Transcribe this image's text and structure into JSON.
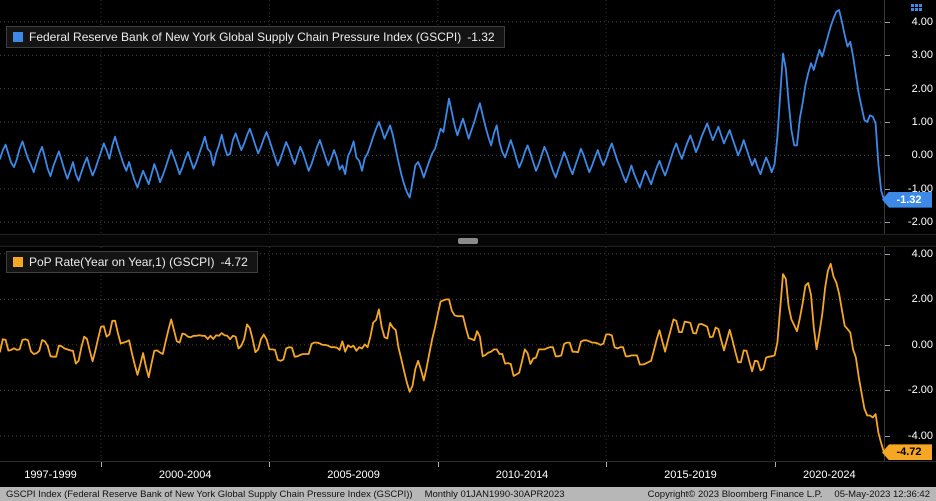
{
  "colors": {
    "background": "#000000",
    "grid": "#474747",
    "axis_text": "#ffffff",
    "gscpi_blue": "#3c89e8",
    "pop_orange": "#f5a623",
    "statusbar_bg": "#b7b7b7",
    "statusbar_text": "#111111"
  },
  "x_axis": {
    "domain_start": 1997.0,
    "domain_end": 2023.25,
    "boundaries": [
      2000,
      2005,
      2010,
      2015,
      2020
    ],
    "groups": [
      {
        "label": "1997-1999",
        "start": 1997,
        "end": 2000
      },
      {
        "label": "2000-2004",
        "start": 2000,
        "end": 2005
      },
      {
        "label": "2005-2009",
        "start": 2005,
        "end": 2010
      },
      {
        "label": "2010-2014",
        "start": 2010,
        "end": 2015
      },
      {
        "label": "2015-2019",
        "start": 2015,
        "end": 2020
      },
      {
        "label": "2020-2024",
        "start": 2020,
        "end": 2024
      }
    ]
  },
  "chart_data": [
    {
      "type": "line",
      "title": "Federal Reserve Bank of New York Global Supply Chain Pressure Index (GSCPI)",
      "legend_position": "top-left",
      "frequency": "Monthly",
      "x_start_year": 1997.0,
      "x_end_year": 2023.25,
      "last_value": -1.32,
      "last_value_label": "-1.32",
      "color": "#3c89e8",
      "badge_text_color": "#ffffff",
      "grid": true,
      "ylim": [
        -2.35,
        4.65
      ],
      "yticks": [
        4.0,
        3.0,
        2.0,
        1.0,
        0.0,
        -1.0,
        -2.0
      ],
      "values": [
        -0.1,
        0.15,
        0.32,
        0.05,
        -0.22,
        -0.35,
        -0.12,
        0.2,
        0.42,
        0.15,
        -0.1,
        -0.28,
        -0.5,
        -0.22,
        0.06,
        0.26,
        -0.06,
        -0.4,
        -0.62,
        -0.32,
        -0.1,
        0.12,
        -0.16,
        -0.44,
        -0.7,
        -0.46,
        -0.2,
        -0.56,
        -0.76,
        -0.5,
        -0.26,
        -0.06,
        -0.36,
        -0.6,
        -0.4,
        -0.14,
        0.1,
        0.36,
        0.16,
        -0.1,
        0.3,
        0.56,
        0.26,
        0.0,
        -0.26,
        -0.46,
        -0.2,
        -0.5,
        -0.76,
        -0.96,
        -0.7,
        -0.46,
        -0.66,
        -0.86,
        -0.56,
        -0.26,
        -0.5,
        -0.8,
        -0.6,
        -0.36,
        -0.1,
        0.16,
        -0.06,
        -0.3,
        -0.56,
        -0.36,
        -0.1,
        0.1,
        -0.16,
        -0.4,
        -0.2,
        0.06,
        0.3,
        0.56,
        0.2,
        0.1,
        -0.3,
        0.06,
        0.3,
        0.62,
        0.26,
        0.0,
        0.05,
        0.46,
        0.66,
        0.4,
        0.16,
        0.36,
        0.6,
        0.8,
        0.56,
        0.3,
        0.06,
        0.26,
        0.5,
        0.7,
        0.46,
        0.2,
        -0.06,
        -0.3,
        -0.1,
        0.16,
        0.4,
        0.2,
        -0.06,
        -0.26,
        0.0,
        0.26,
        0.06,
        -0.2,
        -0.46,
        -0.26,
        0.0,
        0.26,
        0.46,
        0.2,
        -0.06,
        -0.3,
        -0.1,
        0.16,
        -0.06,
        -0.42,
        -0.3,
        -0.56,
        -0.02,
        0.16,
        0.42,
        -0.06,
        -0.16,
        -0.46,
        -0.08,
        0.06,
        0.3,
        0.56,
        0.8,
        1.0,
        0.76,
        0.5,
        0.7,
        0.9,
        0.6,
        0.2,
        -0.2,
        -0.56,
        -0.86,
        -1.1,
        -1.26,
        -0.8,
        -0.3,
        -0.2,
        -0.4,
        -0.66,
        -0.4,
        -0.16,
        0.06,
        0.2,
        0.5,
        0.8,
        0.7,
        1.2,
        1.7,
        1.3,
        0.9,
        0.6,
        0.86,
        1.1,
        0.8,
        0.5,
        0.76,
        1.0,
        1.3,
        1.56,
        1.2,
        0.86,
        0.56,
        0.3,
        0.66,
        0.9,
        0.4,
        0.1,
        -0.06,
        0.2,
        0.46,
        0.2,
        -0.1,
        -0.36,
        -0.16,
        0.1,
        0.3,
        0.06,
        -0.2,
        -0.46,
        -0.26,
        0.0,
        0.26,
        0.06,
        -0.2,
        -0.46,
        -0.66,
        -0.4,
        -0.16,
        0.1,
        -0.1,
        -0.36,
        -0.56,
        -0.3,
        -0.06,
        0.2,
        0.0,
        -0.26,
        -0.5,
        -0.3,
        -0.06,
        0.16,
        -0.1,
        -0.3,
        -0.1,
        0.16,
        0.36,
        0.1,
        -0.16,
        -0.36,
        -0.6,
        -0.8,
        -0.56,
        -0.3,
        -0.56,
        -0.76,
        -0.96,
        -0.7,
        -0.46,
        -0.66,
        -0.86,
        -0.6,
        -0.36,
        -0.16,
        -0.4,
        -0.6,
        -0.36,
        -0.1,
        0.16,
        0.36,
        0.1,
        -0.1,
        0.16,
        0.4,
        0.6,
        0.36,
        0.1,
        0.3,
        0.56,
        0.76,
        0.96,
        0.7,
        0.46,
        0.66,
        0.86,
        0.6,
        0.36,
        0.56,
        0.76,
        0.5,
        0.26,
        0.0,
        0.2,
        0.46,
        0.2,
        -0.06,
        -0.3,
        -0.1,
        -0.36,
        -0.56,
        -0.3,
        -0.06,
        -0.26,
        -0.5,
        -0.26,
        0.56,
        1.8,
        3.05,
        2.6,
        1.6,
        0.76,
        0.3,
        0.3,
        1.1,
        1.56,
        2.1,
        2.46,
        2.76,
        2.56,
        2.86,
        3.16,
        2.96,
        3.26,
        3.56,
        3.86,
        4.1,
        4.3,
        4.35,
        4.0,
        3.6,
        3.26,
        3.4,
        2.96,
        2.4,
        1.86,
        1.46,
        1.06,
        1.0,
        1.2,
        1.16,
        0.96,
        -0.26,
        -1.06,
        -1.32
      ]
    },
    {
      "type": "line",
      "title": "PoP Rate(Year on Year,1) (GSCPI)",
      "legend_position": "top-left",
      "frequency": "Monthly",
      "x_start_year": 1997.0,
      "x_end_year": 2023.25,
      "last_value": -4.72,
      "last_value_label": "-4.72",
      "color": "#f5a623",
      "badge_text_color": "#000000",
      "grid": true,
      "ylim": [
        -5.1,
        4.3
      ],
      "yticks": [
        4.0,
        2.0,
        0.0,
        -2.0,
        -4.0
      ],
      "values": [
        -0.3,
        0.25,
        0.22,
        -0.25,
        -0.22,
        -0.15,
        -0.22,
        -0.2,
        0.22,
        0.25,
        0.2,
        -0.28,
        -0.4,
        -0.37,
        -0.26,
        0.21,
        0.16,
        -0.05,
        -0.5,
        -0.52,
        -0.52,
        -0.03,
        -0.06,
        -0.16,
        -0.2,
        -0.24,
        -0.26,
        -0.82,
        -0.7,
        -0.1,
        0.36,
        0.26,
        -0.26,
        -0.72,
        -0.24,
        0.3,
        0.8,
        0.82,
        0.36,
        0.46,
        1.06,
        1.06,
        0.52,
        0.06,
        0.1,
        0.14,
        0.2,
        -0.36,
        -0.86,
        -1.32,
        -0.86,
        -0.36,
        -0.96,
        -1.42,
        -0.82,
        -0.26,
        -0.24,
        -0.34,
        -0.4,
        0.14,
        0.66,
        1.12,
        0.64,
        0.16,
        0.1,
        0.5,
        0.46,
        0.36,
        0.34,
        0.4,
        0.4,
        0.42,
        0.4,
        0.4,
        0.26,
        0.4,
        0.26,
        0.42,
        0.4,
        0.52,
        0.42,
        0.4,
        0.25,
        0.4,
        0.36,
        -0.16,
        -0.04,
        0.26,
        0.9,
        0.74,
        0.26,
        -0.32,
        -0.2,
        0.26,
        0.45,
        0.24,
        -0.2,
        -0.2,
        -0.22,
        -0.66,
        -0.7,
        -0.64,
        -0.16,
        -0.1,
        -0.12,
        -0.52,
        -0.5,
        -0.44,
        -0.4,
        -0.4,
        -0.4,
        0.04,
        0.1,
        0.1,
        0.06,
        0.0,
        0.0,
        -0.04,
        -0.1,
        -0.1,
        -0.12,
        -0.22,
        0.16,
        -0.3,
        -0.02,
        -0.1,
        -0.04,
        -0.26,
        -0.1,
        -0.16,
        0.02,
        -0.1,
        0.36,
        0.98,
        1.1,
        1.56,
        0.78,
        0.34,
        0.28,
        0.96,
        0.76,
        0.66,
        -0.12,
        -0.62,
        -1.16,
        -1.66,
        -2.06,
        -1.8,
        -1.06,
        -0.7,
        -1.1,
        -1.56,
        -1.0,
        -0.36,
        0.26,
        0.76,
        1.36,
        1.9,
        1.96,
        2.0,
        2.0,
        1.5,
        1.3,
        1.26,
        1.26,
        1.26,
        0.74,
        0.3,
        0.26,
        0.2,
        0.6,
        0.36,
        -0.5,
        -0.44,
        -0.34,
        -0.3,
        -0.2,
        -0.2,
        -0.4,
        -0.4,
        -0.82,
        -0.8,
        -0.84,
        -1.36,
        -1.3,
        -1.22,
        -0.72,
        -0.2,
        -0.36,
        -0.84,
        -0.6,
        -0.56,
        -0.2,
        -0.2,
        -0.2,
        -0.14,
        -0.1,
        -0.1,
        -0.5,
        -0.5,
        -0.46,
        0.04,
        0.1,
        0.1,
        -0.3,
        -0.3,
        -0.32,
        0.14,
        0.2,
        0.2,
        0.16,
        0.1,
        0.1,
        0.06,
        0.0,
        0.06,
        0.46,
        0.46,
        0.42,
        -0.1,
        -0.16,
        -0.1,
        -0.1,
        -0.5,
        -0.5,
        -0.46,
        -0.46,
        -0.46,
        -0.86,
        -0.86,
        -0.82,
        -0.76,
        -0.7,
        -0.24,
        0.24,
        0.64,
        0.16,
        -0.3,
        0.2,
        0.66,
        1.12,
        1.06,
        0.56,
        0.56,
        1.02,
        1.0,
        0.96,
        0.52,
        0.5,
        0.9,
        0.92,
        0.86,
        0.8,
        0.34,
        0.36,
        0.76,
        0.7,
        0.2,
        -0.24,
        0.2,
        0.66,
        0.2,
        -0.3,
        -0.76,
        -0.76,
        -0.24,
        -0.26,
        -0.72,
        -1.16,
        -0.7,
        -0.72,
        -1.12,
        -1.06,
        -0.56,
        -0.52,
        -0.5,
        -0.46,
        0.1,
        1.6,
        3.11,
        2.9,
        1.7,
        1.12,
        0.86,
        0.6,
        1.16,
        1.82,
        2.6,
        2.72,
        2.2,
        0.76,
        -0.19,
        0.56,
        1.36,
        2.5,
        3.26,
        3.56,
        3.0,
        2.74,
        2.25,
        1.54,
        0.84,
        0.7,
        0.54,
        -0.2,
        -0.56,
        -1.4,
        -2.1,
        -2.8,
        -3.1,
        -3.1,
        -3.19,
        -3.04,
        -3.86,
        -4.32,
        -4.72
      ]
    }
  ],
  "statusbar": {
    "security": "GSCPI Index (Federal Reserve Bank of New York Global Supply Chain Pressure Index (GSCPI))",
    "periodicity": "Monthly 01JAN1990-30APR2023",
    "copyright": "Copyright© 2023 Bloomberg Finance L.P.",
    "datetime": "05-May-2023 12:36:42"
  }
}
